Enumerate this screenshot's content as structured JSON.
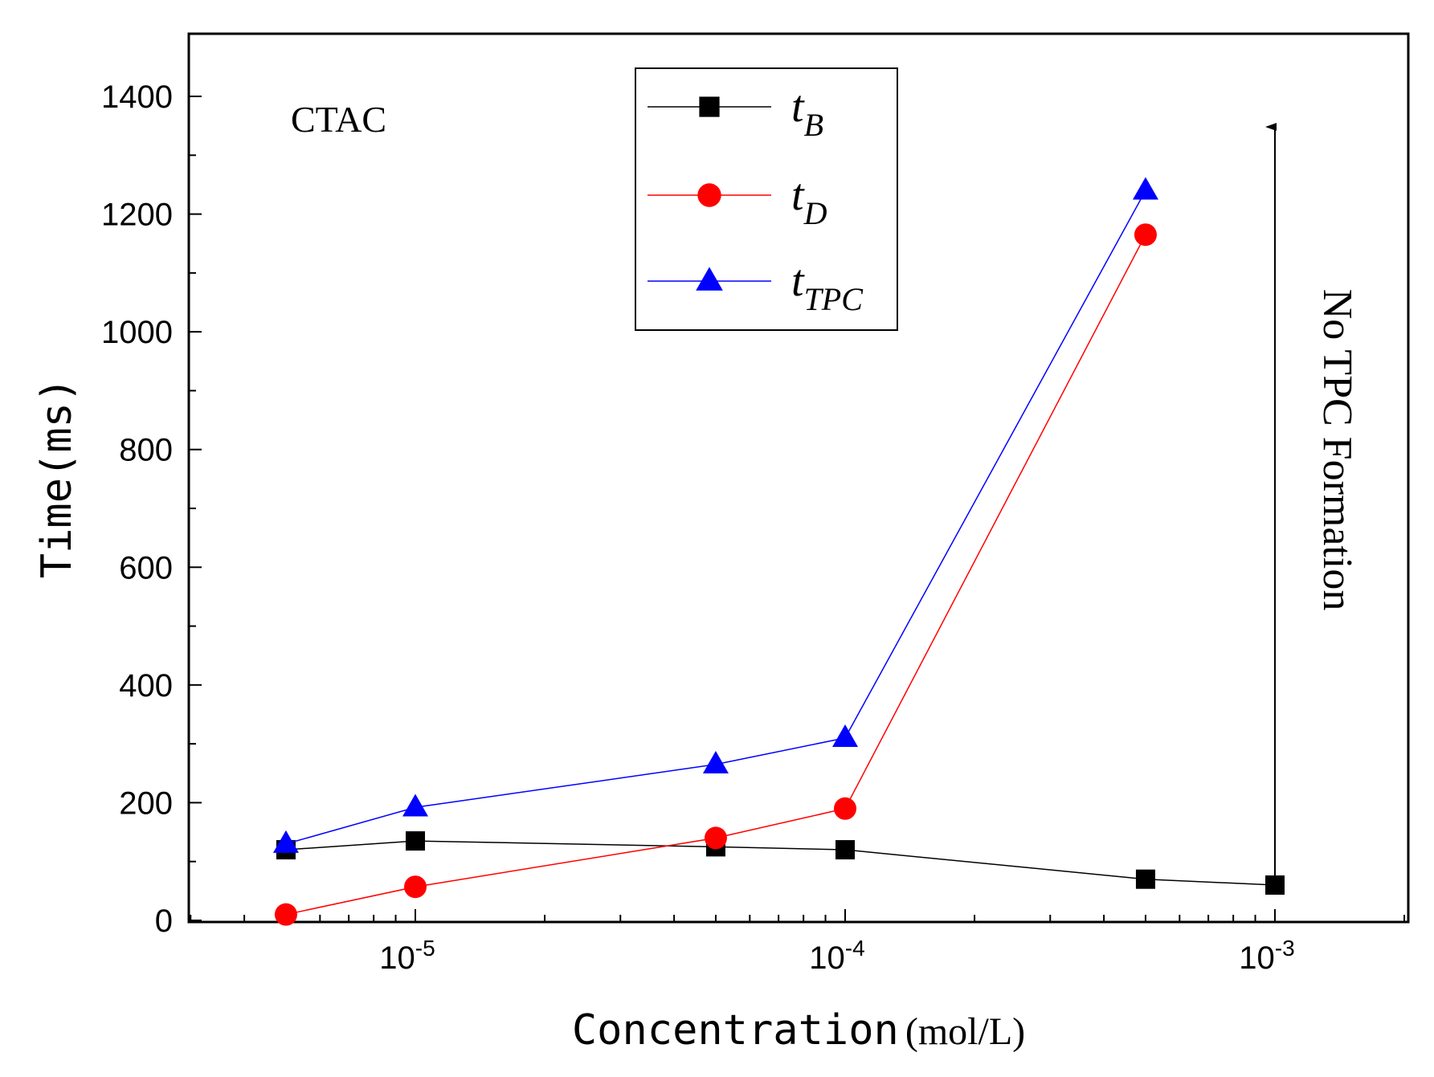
{
  "chart_data": {
    "type": "line",
    "annotation_sample": "CTAC",
    "ylabel": "Time(ms)",
    "xlabel_main": "Concentration",
    "xlabel_unit": "(mol/L)",
    "xscale": "log",
    "xlim": [
      3e-06,
      0.002
    ],
    "ylim": [
      0,
      1500
    ],
    "yticks": [
      0,
      200,
      400,
      600,
      800,
      1000,
      1200,
      1400
    ],
    "ytick_labels": [
      "0",
      "200",
      "400",
      "600",
      "800",
      "1000",
      "1200",
      "1400"
    ],
    "xticks_major": [
      {
        "value": 1e-05,
        "base": "10",
        "exp": "-5"
      },
      {
        "value": 0.0001,
        "base": "10",
        "exp": "-4"
      },
      {
        "value": 0.001,
        "base": "10",
        "exp": "-3"
      }
    ],
    "x": [
      5e-06,
      1e-05,
      5e-05,
      0.0001,
      0.0005,
      0.001
    ],
    "series": [
      {
        "key": "tB",
        "name_main": "t",
        "name_sub": "B",
        "color": "#000000",
        "marker": "square",
        "values": [
          120,
          135,
          125,
          120,
          70,
          60
        ]
      },
      {
        "key": "tD",
        "name_main": "t",
        "name_sub": "D",
        "color": "#ff0000",
        "marker": "circle",
        "values": [
          10,
          57,
          140,
          190,
          1165,
          null
        ]
      },
      {
        "key": "tTPC",
        "name_main": "t",
        "name_sub": "TPC",
        "color": "#0000ff",
        "marker": "triangle",
        "values": [
          130,
          192,
          265,
          310,
          1240,
          null
        ]
      }
    ],
    "arrow_annotation": {
      "x": 0.001,
      "text": "No TPC Formation"
    },
    "legend_position": "top-center"
  }
}
